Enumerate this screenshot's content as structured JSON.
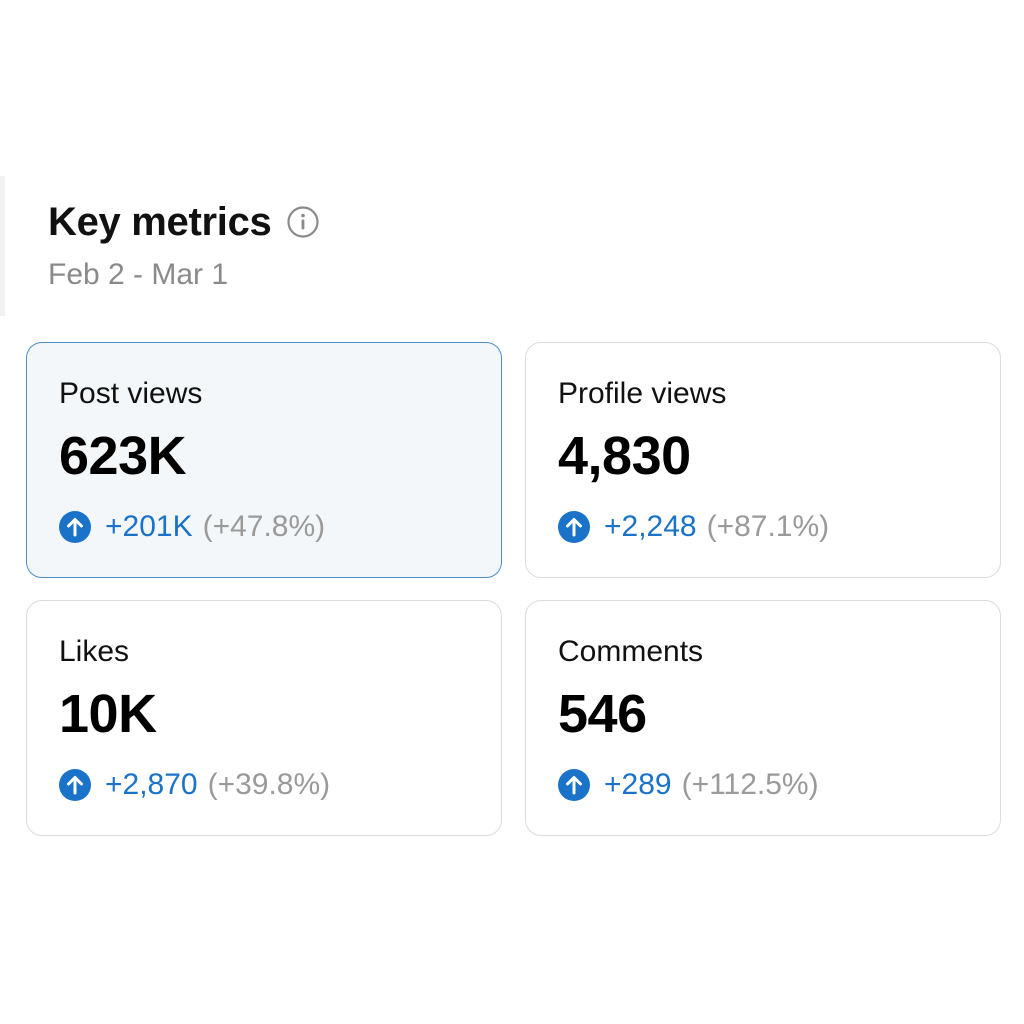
{
  "header": {
    "title": "Key metrics",
    "date_range": "Feb 2 - Mar 1",
    "info_icon": "info-circle-icon"
  },
  "colors": {
    "accent": "#1a73c8",
    "selected_border": "#4a90c8",
    "selected_bg": "#f3f7fa",
    "muted_text": "#8a8a8a"
  },
  "metrics": [
    {
      "label": "Post views",
      "value": "623K",
      "delta": "+201K",
      "percent": "(+47.8%)",
      "icon": "arrow-up-circle-icon",
      "selected": true
    },
    {
      "label": "Profile views",
      "value": "4,830",
      "delta": "+2,248",
      "percent": "(+87.1%)",
      "icon": "arrow-up-circle-icon",
      "selected": false
    },
    {
      "label": "Likes",
      "value": "10K",
      "delta": "+2,870",
      "percent": "(+39.8%)",
      "icon": "arrow-up-circle-icon",
      "selected": false
    },
    {
      "label": "Comments",
      "value": "546",
      "delta": "+289",
      "percent": "(+112.5%)",
      "icon": "arrow-up-circle-icon",
      "selected": false
    }
  ]
}
